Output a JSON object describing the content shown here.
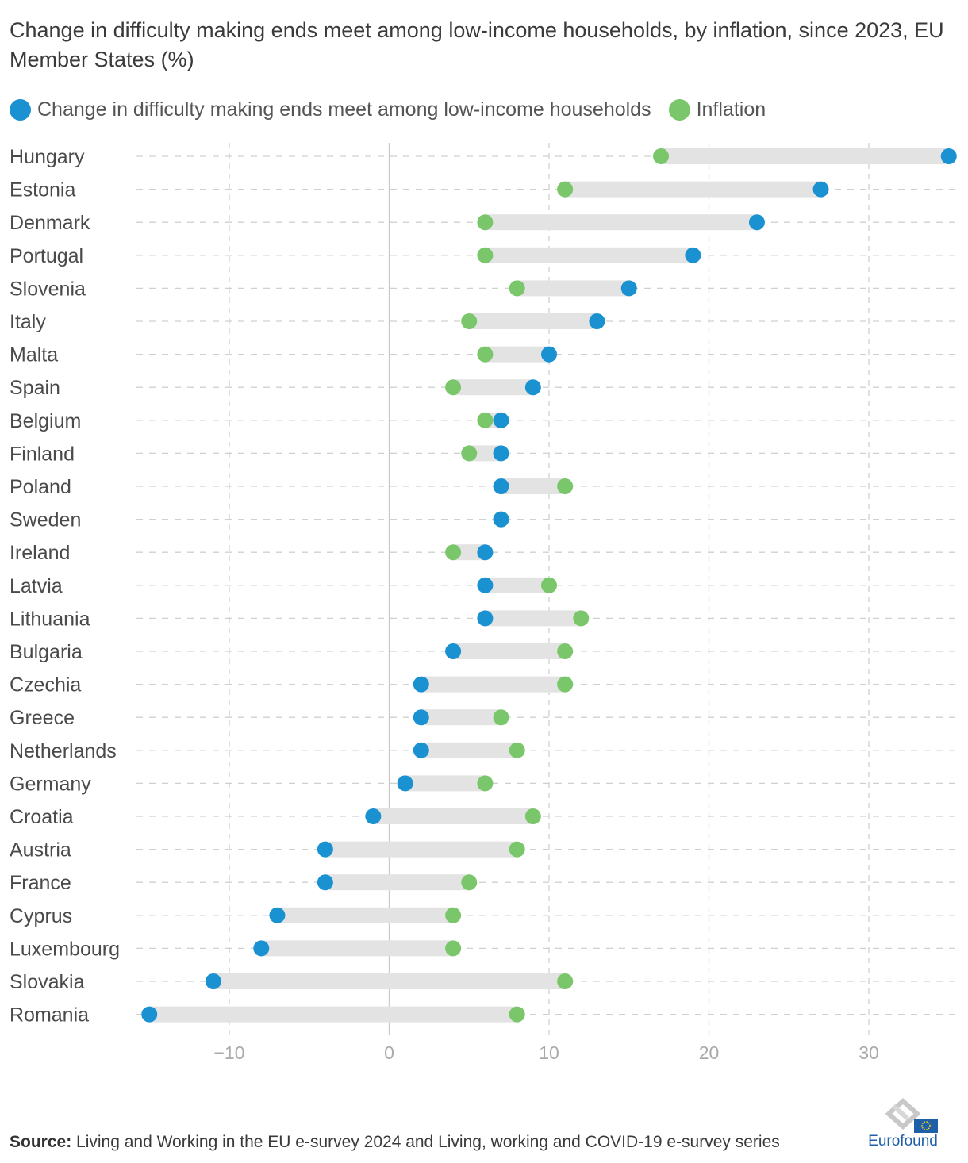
{
  "title": "Change in difficulty making ends meet among low-income households, by inflation, since 2023, EU Member States (%)",
  "legend": [
    {
      "label": "Change in difficulty making ends meet among low-income households",
      "color": "#1a91d0"
    },
    {
      "label": "Inflation",
      "color": "#7ac66b"
    }
  ],
  "footer": {
    "source_label": "Source:",
    "source_text": "Living and Working in the EU e-survey 2024 and Living, working and COVID-19 e-survey series",
    "logo_text": "Eurofound",
    "logo_icon": "eurofound-logo-icon"
  },
  "chart_data": {
    "type": "dumbbell",
    "title": "Change in difficulty making ends meet among low-income households, by inflation, since 2023, EU Member States (%)",
    "xlabel": "",
    "ylabel": "",
    "xlim": [
      -15,
      35
    ],
    "xticks": [
      -10,
      0,
      10,
      20,
      30
    ],
    "xtick_labels": [
      "−10",
      "0",
      "10",
      "20",
      "30"
    ],
    "grid": true,
    "legend_position": "top-left",
    "colors": {
      "difficulty": "#1a91d0",
      "inflation": "#7ac66b",
      "range": "#e3e3e3"
    },
    "categories": [
      "Hungary",
      "Estonia",
      "Denmark",
      "Portugal",
      "Slovenia",
      "Italy",
      "Malta",
      "Spain",
      "Belgium",
      "Finland",
      "Poland",
      "Sweden",
      "Ireland",
      "Latvia",
      "Lithuania",
      "Bulgaria",
      "Czechia",
      "Greece",
      "Netherlands",
      "Germany",
      "Croatia",
      "Austria",
      "France",
      "Cyprus",
      "Luxembourg",
      "Slovakia",
      "Romania"
    ],
    "series": [
      {
        "name": "Change in difficulty making ends meet among low-income households",
        "values": [
          35,
          27,
          23,
          19,
          15,
          13,
          10,
          9,
          7,
          7,
          7,
          7,
          6,
          6,
          6,
          4,
          2,
          2,
          2,
          1,
          -1,
          -4,
          -4,
          -7,
          -8,
          -11,
          -15
        ]
      },
      {
        "name": "Inflation",
        "values": [
          17,
          11,
          6,
          6,
          8,
          5,
          6,
          4,
          6,
          5,
          11,
          7,
          4,
          10,
          12,
          11,
          11,
          7,
          8,
          6,
          9,
          8,
          5,
          4,
          4,
          11,
          8
        ]
      }
    ]
  }
}
